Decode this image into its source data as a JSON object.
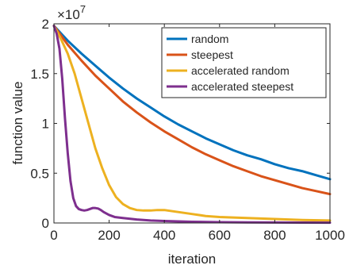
{
  "chart_data": {
    "type": "line",
    "title": "",
    "xlabel": "iteration",
    "ylabel": "function value",
    "y_multiplier": {
      "base": "×10",
      "exponent": "7"
    },
    "xlim": [
      0,
      1000
    ],
    "ylim": [
      0,
      2
    ],
    "grid": false,
    "legend_position": "top-right",
    "xticks": [
      0,
      200,
      400,
      600,
      800,
      1000
    ],
    "xtick_labels": [
      "0",
      "200",
      "400",
      "600",
      "800",
      "1000"
    ],
    "yticks": [
      0,
      0.5,
      1,
      1.5,
      2
    ],
    "ytick_labels": [
      "0",
      "0.5",
      "1",
      "1.5",
      "2"
    ],
    "series": [
      {
        "name": "random",
        "color": "#0072BD",
        "x": [
          0,
          50,
          100,
          150,
          200,
          250,
          300,
          350,
          400,
          450,
          500,
          550,
          600,
          650,
          700,
          750,
          800,
          850,
          900,
          950,
          1000
        ],
        "values": [
          1.98,
          1.83,
          1.7,
          1.58,
          1.46,
          1.35,
          1.25,
          1.16,
          1.07,
          0.99,
          0.92,
          0.85,
          0.79,
          0.73,
          0.68,
          0.64,
          0.59,
          0.55,
          0.52,
          0.48,
          0.44
        ]
      },
      {
        "name": "steepest",
        "color": "#D95319",
        "x": [
          0,
          50,
          100,
          150,
          200,
          250,
          300,
          350,
          400,
          450,
          500,
          550,
          600,
          650,
          700,
          750,
          800,
          850,
          900,
          950,
          1000
        ],
        "values": [
          1.98,
          1.79,
          1.63,
          1.48,
          1.35,
          1.22,
          1.11,
          1.01,
          0.92,
          0.84,
          0.76,
          0.69,
          0.63,
          0.57,
          0.52,
          0.47,
          0.43,
          0.39,
          0.35,
          0.32,
          0.29
        ]
      },
      {
        "name": "accelerated random",
        "color": "#EDB120",
        "x": [
          0,
          25,
          50,
          75,
          100,
          125,
          150,
          175,
          200,
          225,
          250,
          275,
          300,
          325,
          350,
          375,
          400,
          425,
          450,
          500,
          550,
          600,
          700,
          800,
          900,
          1000
        ],
        "values": [
          1.98,
          1.85,
          1.7,
          1.5,
          1.25,
          1.0,
          0.75,
          0.55,
          0.38,
          0.26,
          0.19,
          0.15,
          0.13,
          0.125,
          0.125,
          0.13,
          0.13,
          0.12,
          0.11,
          0.09,
          0.07,
          0.06,
          0.05,
          0.04,
          0.03,
          0.025
        ]
      },
      {
        "name": "accelerated steepest",
        "color": "#7E2F8E",
        "x": [
          0,
          10,
          20,
          30,
          40,
          50,
          60,
          70,
          80,
          90,
          100,
          110,
          120,
          130,
          140,
          150,
          160,
          170,
          180,
          200,
          220,
          250,
          300,
          350,
          400,
          500,
          600,
          700,
          800,
          900,
          1000
        ],
        "values": [
          1.98,
          1.9,
          1.75,
          1.45,
          1.05,
          0.7,
          0.42,
          0.25,
          0.17,
          0.14,
          0.13,
          0.125,
          0.13,
          0.14,
          0.15,
          0.15,
          0.145,
          0.13,
          0.11,
          0.08,
          0.06,
          0.05,
          0.035,
          0.025,
          0.02,
          0.012,
          0.008,
          0.006,
          0.005,
          0.004,
          0.003
        ]
      }
    ]
  }
}
